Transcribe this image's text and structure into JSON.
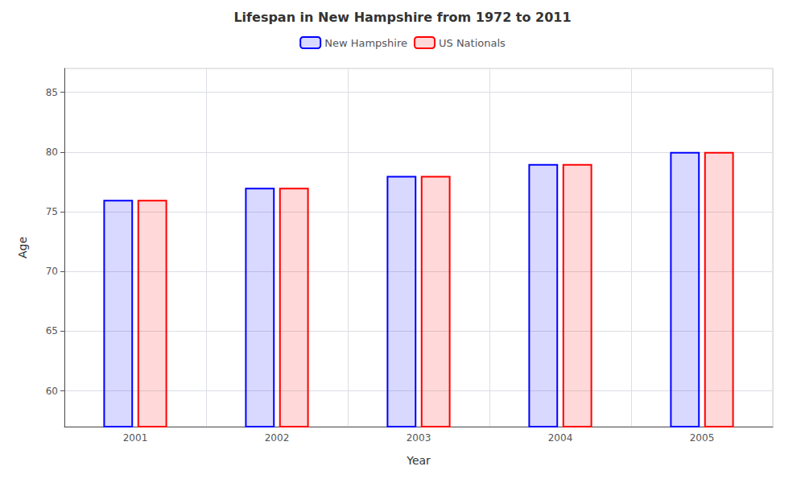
{
  "chart_data": {
    "type": "bar",
    "title": "Lifespan in New Hampshire from 1972 to 2011",
    "x_label": "Year",
    "y_label": "Age",
    "categories": [
      "2001",
      "2002",
      "2003",
      "2004",
      "2005"
    ],
    "series": [
      {
        "name": "New Hampshire",
        "color": "#0000ff",
        "values": [
          76,
          77,
          78,
          79,
          80
        ]
      },
      {
        "name": "US Nationals",
        "color": "#ff0000",
        "values": [
          76,
          77,
          78,
          79,
          80
        ]
      }
    ],
    "ylim": [
      57,
      87
    ],
    "yticks": [
      60,
      65,
      70,
      75,
      80,
      85
    ],
    "grid": true,
    "legend": "top"
  }
}
